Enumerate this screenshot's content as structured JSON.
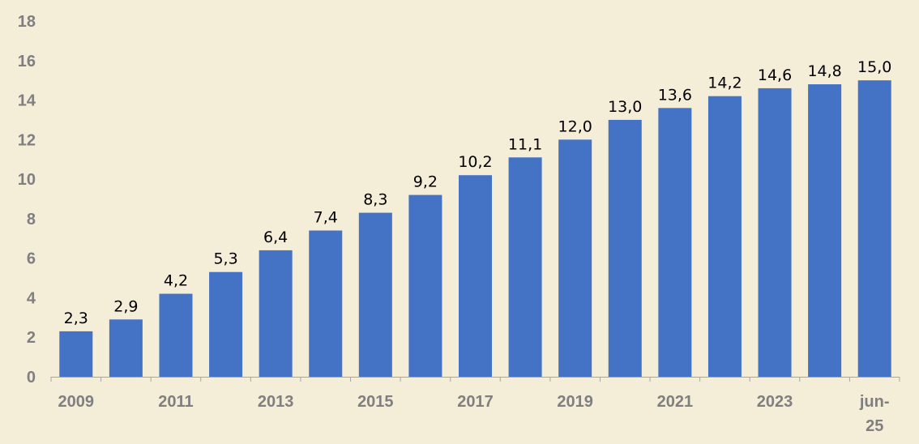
{
  "chart_data": {
    "type": "bar",
    "title": "",
    "xlabel": "",
    "ylabel": "",
    "categories": [
      "2009",
      "2010",
      "2011",
      "2012",
      "2013",
      "2014",
      "2015",
      "2016",
      "2017",
      "2018",
      "2019",
      "2020",
      "2021",
      "2022",
      "2023",
      "2024",
      "jun-25"
    ],
    "values": [
      2.3,
      2.9,
      4.2,
      5.3,
      6.4,
      7.4,
      8.3,
      9.2,
      10.2,
      11.1,
      12.0,
      13.0,
      13.6,
      14.2,
      14.6,
      14.8,
      15.0
    ],
    "value_labels": [
      "2,3",
      "2,9",
      "4,2",
      "5,3",
      "6,4",
      "7,4",
      "8,3",
      "9,2",
      "10,2",
      "11,1",
      "12,0",
      "13,0",
      "13,6",
      "14,2",
      "14,6",
      "14,8",
      "15,0"
    ],
    "x_tick_labels": [
      {
        "category": "2009",
        "lines": [
          "2009"
        ]
      },
      {
        "category": "2011",
        "lines": [
          "2011"
        ]
      },
      {
        "category": "2013",
        "lines": [
          "2013"
        ]
      },
      {
        "category": "2015",
        "lines": [
          "2015"
        ]
      },
      {
        "category": "2017",
        "lines": [
          "2017"
        ]
      },
      {
        "category": "2019",
        "lines": [
          "2019"
        ]
      },
      {
        "category": "2021",
        "lines": [
          "2021"
        ]
      },
      {
        "category": "2023",
        "lines": [
          "2023"
        ]
      },
      {
        "category": "jun-25",
        "lines": [
          "jun-",
          "25"
        ]
      }
    ],
    "yticks": [
      0,
      2,
      4,
      6,
      8,
      10,
      12,
      14,
      16,
      18
    ],
    "ylim": [
      0,
      18
    ],
    "grid": false,
    "legend": "none",
    "colors": {
      "bar": "#4472C4",
      "background": "#F4EDD8",
      "axis": "#A6A6A6",
      "tick_text": "#7F7F7F",
      "label_text": "#000000"
    }
  }
}
